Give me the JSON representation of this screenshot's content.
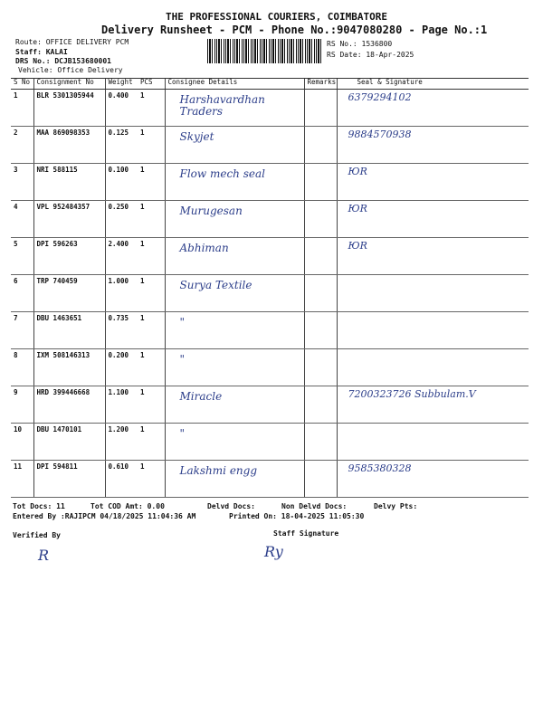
{
  "header": {
    "company": "THE PROFESSIONAL COURIERS, COIMBATORE",
    "subtitle": "Delivery Runsheet - PCM - Phone No.:9047080280 - Page No.:1",
    "route": "Route: OFFICE DELIVERY PCM",
    "staff": "Staff: KALAI",
    "drs_no": "DRS No.: DCJB153680001",
    "vehicle": "Vehicle: Office Delivery",
    "rs_no": "RS No.: 1536800",
    "rs_date": "RS Date: 18-Apr-2025"
  },
  "table": {
    "columns": [
      "S No",
      "Consignment No",
      "Weight",
      "PCS",
      "Consignee Details",
      "Remarks",
      "Seal & Signature"
    ],
    "rows": [
      {
        "sno": "1",
        "consignment": "BLR 5301305944",
        "weight": "0.400",
        "pcs": "1",
        "consignee": "Harshavardhan Traders",
        "signature": "6379294102"
      },
      {
        "sno": "2",
        "consignment": "MAA 869098353",
        "weight": "0.125",
        "pcs": "1",
        "consignee": "Skyjet",
        "signature": "9884570938"
      },
      {
        "sno": "3",
        "consignment": "NRI 588115",
        "weight": "0.100",
        "pcs": "1",
        "consignee": "Flow mech seal",
        "signature": "ЮR"
      },
      {
        "sno": "4",
        "consignment": "VPL 952484357",
        "weight": "0.250",
        "pcs": "1",
        "consignee": "Murugesan",
        "signature": "ЮR"
      },
      {
        "sno": "5",
        "consignment": "DPI 596263",
        "weight": "2.400",
        "pcs": "1",
        "consignee": "Abhiman",
        "signature": "ЮR"
      },
      {
        "sno": "6",
        "consignment": "TRP 740459",
        "weight": "1.000",
        "pcs": "1",
        "consignee": "Surya Textile",
        "signature": ""
      },
      {
        "sno": "7",
        "consignment": "DBU 1463651",
        "weight": "0.735",
        "pcs": "1",
        "consignee": "\"",
        "signature": ""
      },
      {
        "sno": "8",
        "consignment": "IXM 508146313",
        "weight": "0.200",
        "pcs": "1",
        "consignee": "\"",
        "signature": ""
      },
      {
        "sno": "9",
        "consignment": "HRD 399446668",
        "weight": "1.100",
        "pcs": "1",
        "consignee": "Miracle",
        "signature": "7200323726 Subbulam.V"
      },
      {
        "sno": "10",
        "consignment": "DBU 1470101",
        "weight": "1.200",
        "pcs": "1",
        "consignee": "\"",
        "signature": ""
      },
      {
        "sno": "11",
        "consignment": "DPI 594811",
        "weight": "0.610",
        "pcs": "1",
        "consignee": "Lakshmi engg",
        "signature": "9585380328"
      }
    ]
  },
  "footer": {
    "tot_docs": "Tot Docs:  11",
    "tot_cod": "Tot COD Amt:    0.00",
    "delvd_docs": "Delvd Docs:",
    "non_delvd_docs": "Non Delvd Docs:",
    "delvy_pts": "Delvy Pts:",
    "entered_by": "Entered By :RAJIPCM 04/18/2025 11:04:36 AM",
    "printed_on": "Printed On: 18-04-2025 11:05:30",
    "verified_by": "Verified By",
    "staff_signature": "Staff Signature"
  }
}
